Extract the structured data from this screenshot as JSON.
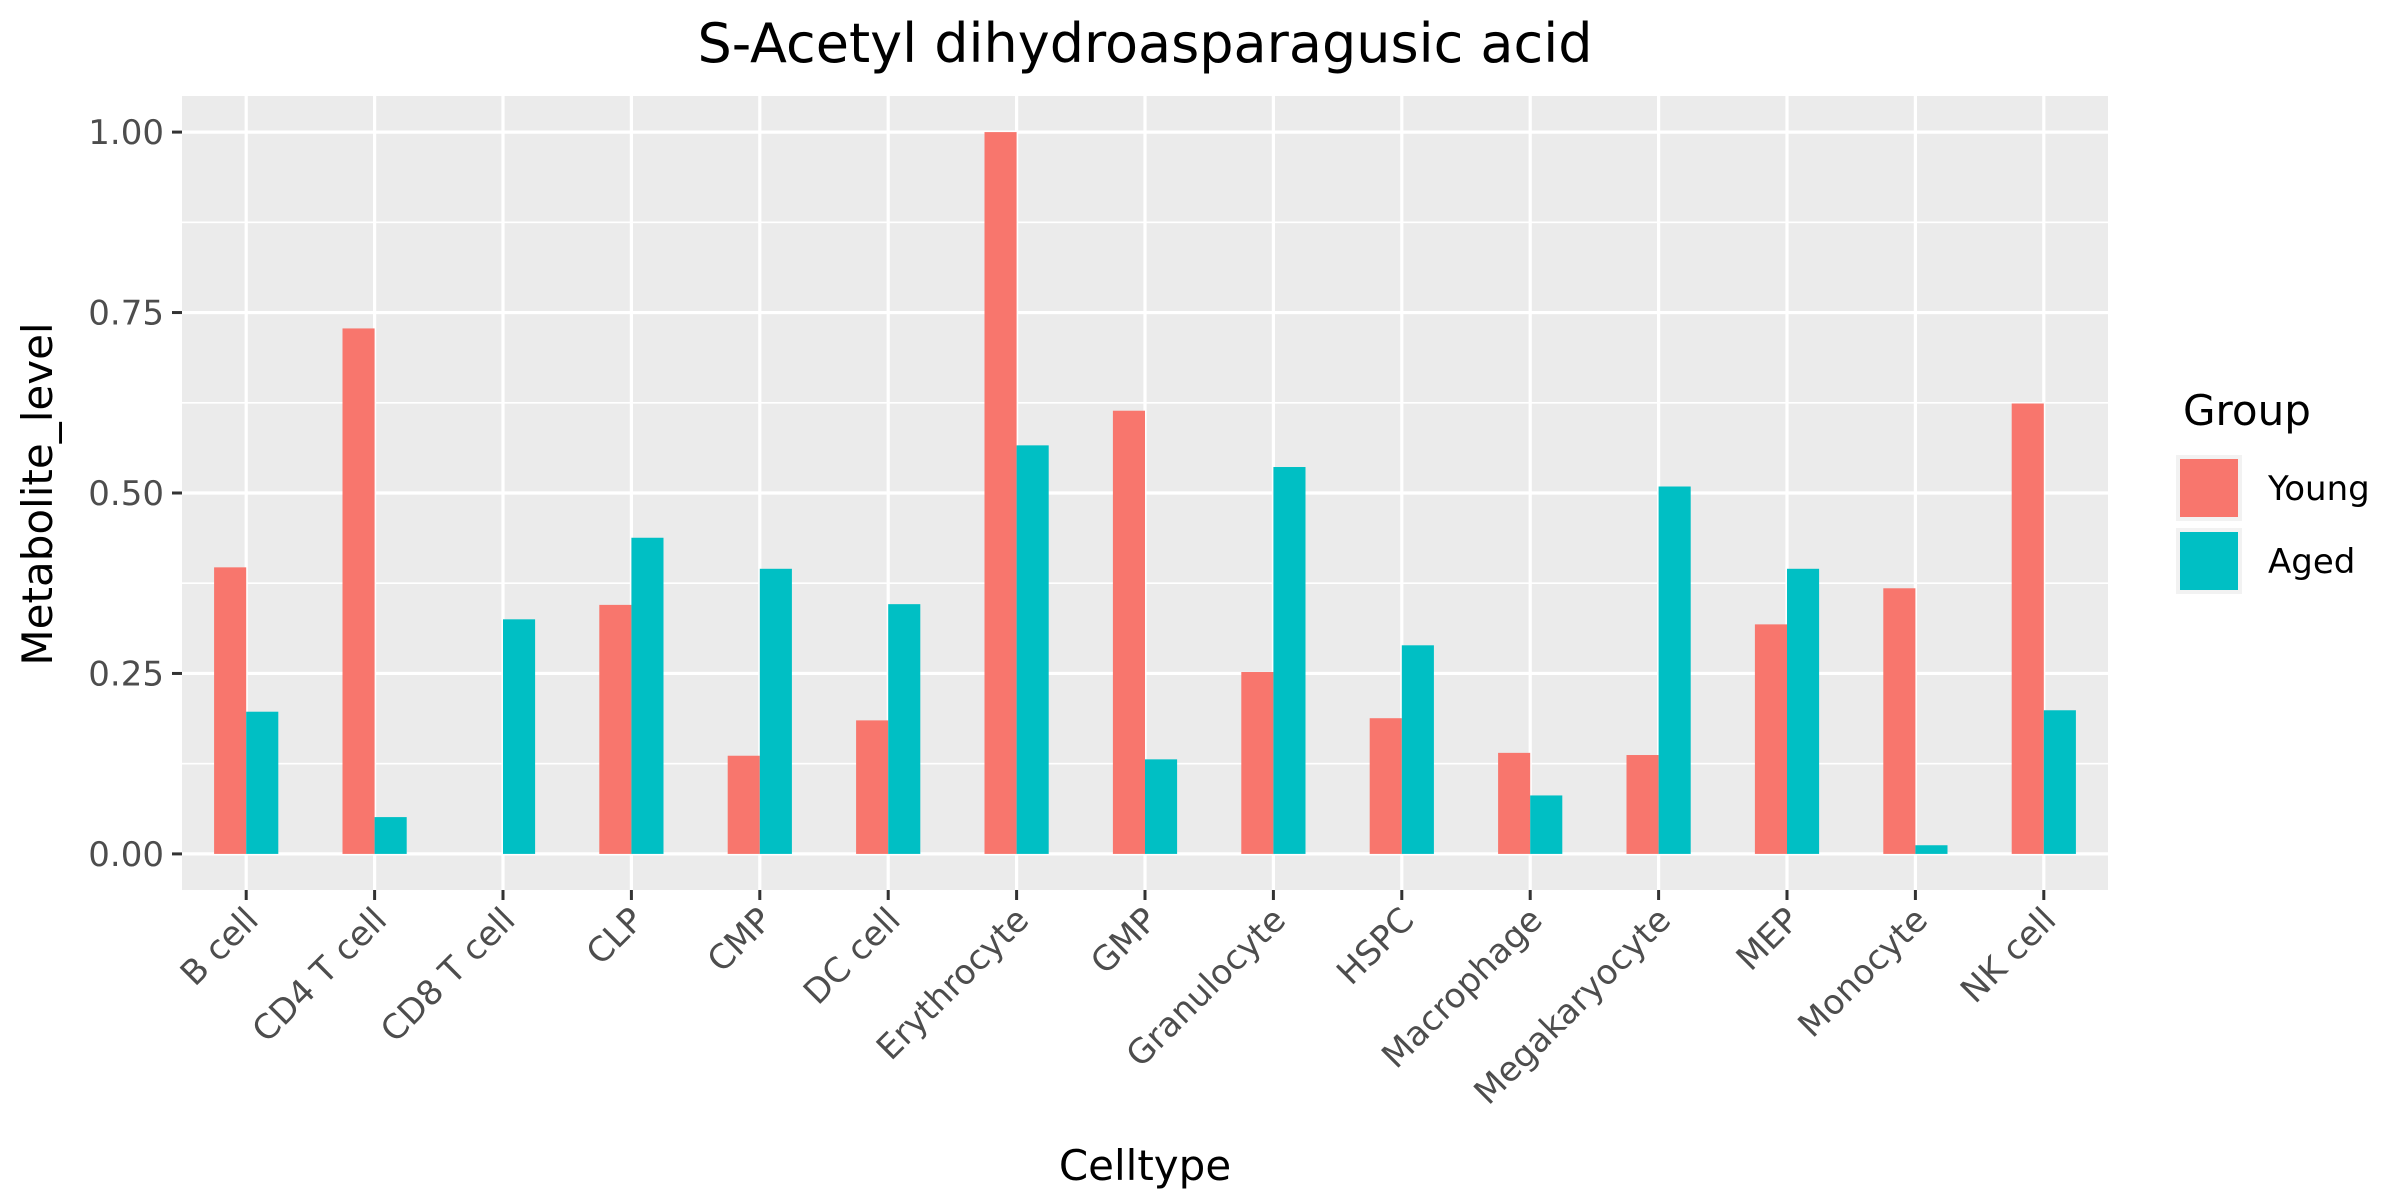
{
  "chart_data": {
    "type": "bar",
    "title": "S-Acetyl dihydroasparagusic acid",
    "xlabel": "Celltype",
    "ylabel": "Metabolite_level",
    "categories": [
      "B cell",
      "CD4 T cell",
      "CD8 T cell",
      "CLP",
      "CMP",
      "DC cell",
      "Erythrocyte",
      "GMP",
      "Granulocyte",
      "HSPC",
      "Macrophage",
      "Megakaryocyte",
      "MEP",
      "Monocyte",
      "NK cell"
    ],
    "series": [
      {
        "name": "Young",
        "color": "#F8766D",
        "values": [
          0.397,
          0.728,
          0.0,
          0.345,
          0.136,
          0.185,
          1.0,
          0.614,
          0.252,
          0.188,
          0.14,
          0.137,
          0.318,
          0.368,
          0.624
        ]
      },
      {
        "name": "Aged",
        "color": "#00BFC4",
        "values": [
          0.197,
          0.051,
          0.325,
          0.438,
          0.395,
          0.346,
          0.566,
          0.131,
          0.536,
          0.289,
          0.081,
          0.509,
          0.395,
          0.012,
          0.199
        ]
      }
    ],
    "ylim": [
      -0.05,
      1.05
    ],
    "yticks": [
      0.0,
      0.25,
      0.5,
      0.75,
      1.0
    ],
    "ytick_labels": [
      "0.00",
      "0.25",
      "0.50",
      "0.75",
      "1.00"
    ],
    "legend": {
      "title": "Group",
      "position": "right"
    },
    "grid": true,
    "panel_color": "#EBEBEB"
  }
}
